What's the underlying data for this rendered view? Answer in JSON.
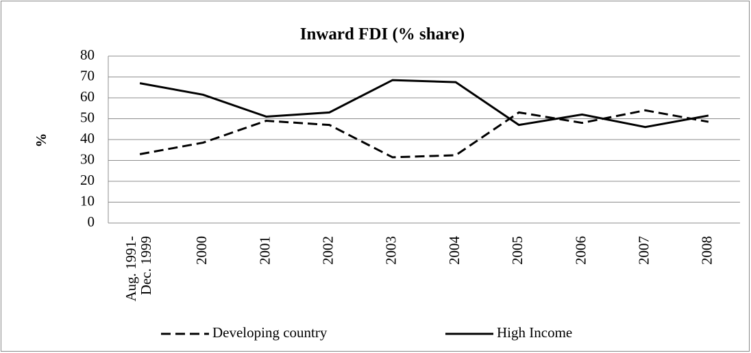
{
  "chart_data": {
    "type": "line",
    "title": "Inward FDI (% share)",
    "y_label": "%",
    "categories": [
      "Aug. 1991-\nDec. 1999",
      "2000",
      "2001",
      "2002",
      "2003",
      "2004",
      "2005",
      "2006",
      "2007",
      "2008"
    ],
    "series": [
      {
        "name": "Developing country",
        "color": "#000000",
        "dash": "dashed",
        "values": [
          33,
          38.5,
          49,
          47,
          31.5,
          32.5,
          53,
          48,
          54,
          48.5
        ]
      },
      {
        "name": "High Income",
        "color": "#000000",
        "dash": "solid",
        "values": [
          67,
          61.5,
          51,
          53,
          68.5,
          67.5,
          47,
          52,
          46,
          51.5
        ]
      }
    ],
    "ylim": [
      0,
      80
    ],
    "yticks": [
      0,
      10,
      20,
      30,
      40,
      50,
      60,
      70,
      80
    ],
    "grid": true,
    "legend": "bottom"
  }
}
